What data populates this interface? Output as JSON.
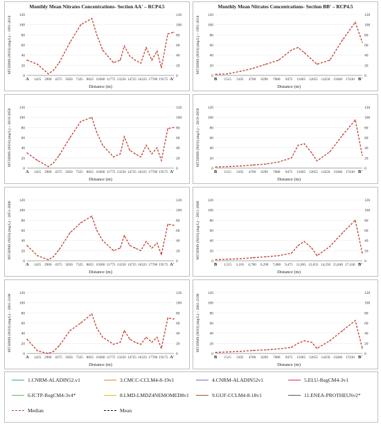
{
  "ylabel_base": "MT3DMS (NO3) (mg/L)",
  "xlabel": "Distance (m)",
  "legend": [
    {
      "label": "1.CNRM-ALADIN52.v1",
      "color": "#2aa8a8",
      "dash": false
    },
    {
      "label": "3.CMCC-CCLM4-8-19v1",
      "color": "#e8821e",
      "dash": false
    },
    {
      "label": "4.CNRM-ALADIN52v1",
      "color": "#6a6ad0",
      "dash": false
    },
    {
      "label": "5.ELU-RegCM4-3v1",
      "color": "#d0306a",
      "dash": false
    },
    {
      "label": "6.ICTP-RegCM4-3v4*",
      "color": "#5bb85b",
      "dash": false
    },
    {
      "label": "8.LMD-LMDZ4NEMOMED8v1",
      "color": "#e8b820",
      "dash": false
    },
    {
      "label": "9.GUF-CCLM4-8-18v1",
      "color": "#a0522d",
      "dash": false
    },
    {
      "label": "11.ENEA-PROTHEUSv2*",
      "color": "#555555",
      "dash": false
    },
    {
      "label": "Median",
      "color": "#c0392b",
      "dash": true
    },
    {
      "label": "Mean",
      "color": "#111111",
      "dash": true
    }
  ],
  "chart_data": [
    {
      "type": "line",
      "title": "Monthly Mean Nitrates Concentrations- Section AA' – RCP4.5",
      "period": "1991-2018",
      "xlabel": "Distance (m)",
      "ylabel": "MT3DMS (NO3) (mg/L)",
      "x_ticks": [
        "1425",
        "2900",
        "4375",
        "5850",
        "7325",
        "8825",
        "10300",
        "11775",
        "13250",
        "14725",
        "16225",
        "17700",
        "19175"
      ],
      "ylim": [
        0,
        120
      ],
      "y_ticks": [
        0,
        20,
        40,
        60,
        80,
        100,
        120
      ],
      "ends": [
        "A",
        "A'"
      ],
      "series": [
        {
          "name": "Median",
          "x": [
            0,
            1425,
            2900,
            3600,
            4375,
            5850,
            7325,
            8825,
            9500,
            10300,
            11775,
            12700,
            13250,
            14000,
            14725,
            15500,
            16225,
            17000,
            17700,
            18300,
            19175,
            20000
          ],
          "values": [
            30,
            22,
            3,
            10,
            25,
            65,
            100,
            112,
            80,
            50,
            25,
            30,
            58,
            38,
            30,
            24,
            55,
            30,
            48,
            15,
            82,
            85
          ]
        }
      ]
    },
    {
      "type": "line",
      "title": "Monthly Mean Nitrates Concentrations- Section BB' – RCP4.5",
      "period": "1991-2018",
      "xlabel": "Distance (m)",
      "ylabel": "MT3DMS (NO3) (mg/L)",
      "x_ticks": [
        "1515",
        "3105",
        "4700",
        "6290",
        "7880",
        "9475",
        "11065",
        "12655",
        "14250",
        "15840",
        "17430"
      ],
      "ylim": [
        0,
        120
      ],
      "y_ticks": [
        0,
        20,
        40,
        60,
        80,
        100,
        120
      ],
      "ends": [
        "B",
        "B'"
      ],
      "series": [
        {
          "name": "Median",
          "x": [
            0,
            1515,
            3105,
            4700,
            6290,
            7880,
            9475,
            10300,
            11065,
            12655,
            14250,
            15840,
            17430,
            18300
          ],
          "values": [
            2,
            3,
            8,
            14,
            22,
            30,
            50,
            55,
            45,
            22,
            30,
            70,
            105,
            65
          ]
        }
      ]
    },
    {
      "type": "line",
      "title": "",
      "period": "2019-2050",
      "xlabel": "Distance (m)",
      "ylabel": "MT3DMS (NO3) (mg/L)",
      "x_ticks": [
        "1425",
        "2900",
        "4375",
        "5850",
        "7325",
        "8825",
        "10300",
        "11775",
        "13250",
        "14725",
        "16225",
        "17700",
        "19175"
      ],
      "ylim": [
        0,
        120
      ],
      "y_ticks": [
        0,
        20,
        40,
        60,
        80,
        100,
        120
      ],
      "ends": [
        "A",
        "A'"
      ],
      "series": [
        {
          "name": "Median",
          "x": [
            0,
            1425,
            2900,
            3600,
            4375,
            5850,
            7325,
            8825,
            9500,
            10300,
            11775,
            12700,
            13250,
            14000,
            14725,
            15500,
            16225,
            17000,
            17700,
            18300,
            19175,
            20000
          ],
          "values": [
            30,
            15,
            3,
            10,
            25,
            60,
            92,
            100,
            70,
            45,
            22,
            28,
            62,
            35,
            28,
            22,
            45,
            28,
            40,
            15,
            78,
            80
          ]
        }
      ]
    },
    {
      "type": "line",
      "title": "",
      "period": "2019-2050",
      "xlabel": "Distance (m)",
      "ylabel": "MT3DMS (NO3) (mg/L)",
      "x_ticks": [
        "1515",
        "3105",
        "4700",
        "6290",
        "7880",
        "9475",
        "11065",
        "12655",
        "14250",
        "15840",
        "17430"
      ],
      "ylim": [
        0,
        120
      ],
      "y_ticks": [
        0,
        20,
        40,
        60,
        80,
        100,
        120
      ],
      "ends": [
        "B",
        "B'"
      ],
      "series": [
        {
          "name": "Median",
          "x": [
            0,
            1515,
            3105,
            4700,
            6290,
            7880,
            9475,
            10300,
            11065,
            12000,
            12655,
            14250,
            15840,
            17430,
            18300
          ],
          "values": [
            2,
            3,
            4,
            6,
            8,
            12,
            20,
            45,
            48,
            30,
            14,
            32,
            65,
            95,
            25
          ]
        }
      ]
    },
    {
      "type": "line",
      "title": "",
      "period": "2051-2080",
      "xlabel": "Distance (m)",
      "ylabel": "MT3DMS (NO3) (mg/L)",
      "x_ticks": [
        "1425",
        "2900",
        "4375",
        "5850",
        "7325",
        "8825",
        "10300",
        "11775",
        "13250",
        "14725",
        "16225",
        "17700",
        "19175"
      ],
      "ylim": [
        0,
        120
      ],
      "y_ticks": [
        0,
        20,
        40,
        60,
        80,
        100,
        120
      ],
      "ends": [
        "A",
        "A'"
      ],
      "series": [
        {
          "name": "Median",
          "x": [
            0,
            1425,
            2900,
            3600,
            4375,
            5850,
            7325,
            8825,
            9500,
            10300,
            11775,
            12700,
            13250,
            14000,
            14725,
            15500,
            16225,
            17000,
            17700,
            18300,
            19175,
            20000
          ],
          "values": [
            30,
            10,
            2,
            8,
            22,
            55,
            75,
            88,
            60,
            40,
            20,
            25,
            50,
            30,
            25,
            20,
            38,
            25,
            35,
            12,
            72,
            70
          ]
        }
      ]
    },
    {
      "type": "line",
      "title": "",
      "period": "2051-2080",
      "xlabel": "Distance (m)",
      "ylabel": "MT3DMS (NO3) (mg/L)",
      "x_ticks": [
        "1,515",
        "3,105",
        "4,700",
        "6,290",
        "7,880",
        "9,475",
        "11,065",
        "12,655",
        "14,250",
        "15,840",
        "17,430"
      ],
      "ylim": [
        0,
        120
      ],
      "y_ticks": [
        0,
        20,
        40,
        60,
        80,
        100,
        120
      ],
      "ends": [
        "B",
        "B'"
      ],
      "series": [
        {
          "name": "Median",
          "x": [
            0,
            1515,
            3105,
            4700,
            6290,
            7880,
            9475,
            10300,
            11065,
            12000,
            12655,
            14250,
            15840,
            17430,
            18300
          ],
          "values": [
            2,
            3,
            4,
            6,
            8,
            10,
            15,
            30,
            38,
            25,
            10,
            28,
            55,
            80,
            15
          ]
        }
      ]
    },
    {
      "type": "line",
      "title": "",
      "period": "2081-2100",
      "xlabel": "Distance (m)",
      "ylabel": "MT3DMS (NO3) (mg/L)",
      "x_ticks": [
        "1425",
        "2900",
        "4375",
        "5850",
        "7325",
        "8825",
        "10300",
        "11775",
        "13250",
        "14725",
        "16225",
        "17700",
        "19175"
      ],
      "ylim": [
        0,
        120
      ],
      "y_ticks": [
        0,
        20,
        40,
        60,
        80,
        100,
        120
      ],
      "ends": [
        "A",
        "A'"
      ],
      "series": [
        {
          "name": "Median",
          "x": [
            0,
            1425,
            2900,
            3600,
            4375,
            5850,
            7325,
            8825,
            9500,
            10300,
            11775,
            12700,
            13250,
            14000,
            14725,
            15500,
            16225,
            17000,
            17700,
            18300,
            19175,
            20000
          ],
          "values": [
            28,
            5,
            0,
            4,
            15,
            45,
            60,
            78,
            50,
            32,
            18,
            22,
            45,
            28,
            22,
            18,
            32,
            22,
            32,
            10,
            70,
            68
          ]
        }
      ]
    },
    {
      "type": "line",
      "title": "",
      "period": "2081-2100",
      "xlabel": "Distance (m)",
      "ylabel": "MT3DMS (NO3) (mg/L)",
      "x_ticks": [
        "1515",
        "3105",
        "4700",
        "6290",
        "7880",
        "9475",
        "11065",
        "12655",
        "14250",
        "15840",
        "17430"
      ],
      "ylim": [
        0,
        120
      ],
      "y_ticks": [
        0,
        20,
        40,
        60,
        80,
        100,
        120
      ],
      "ends": [
        "B",
        "B'"
      ],
      "series": [
        {
          "name": "Median",
          "x": [
            0,
            1515,
            3105,
            4700,
            6290,
            7880,
            9475,
            10300,
            11065,
            12000,
            12655,
            14250,
            15840,
            17430,
            18300
          ],
          "values": [
            2,
            3,
            4,
            6,
            7,
            9,
            12,
            20,
            25,
            22,
            10,
            25,
            45,
            65,
            10
          ]
        }
      ]
    }
  ]
}
